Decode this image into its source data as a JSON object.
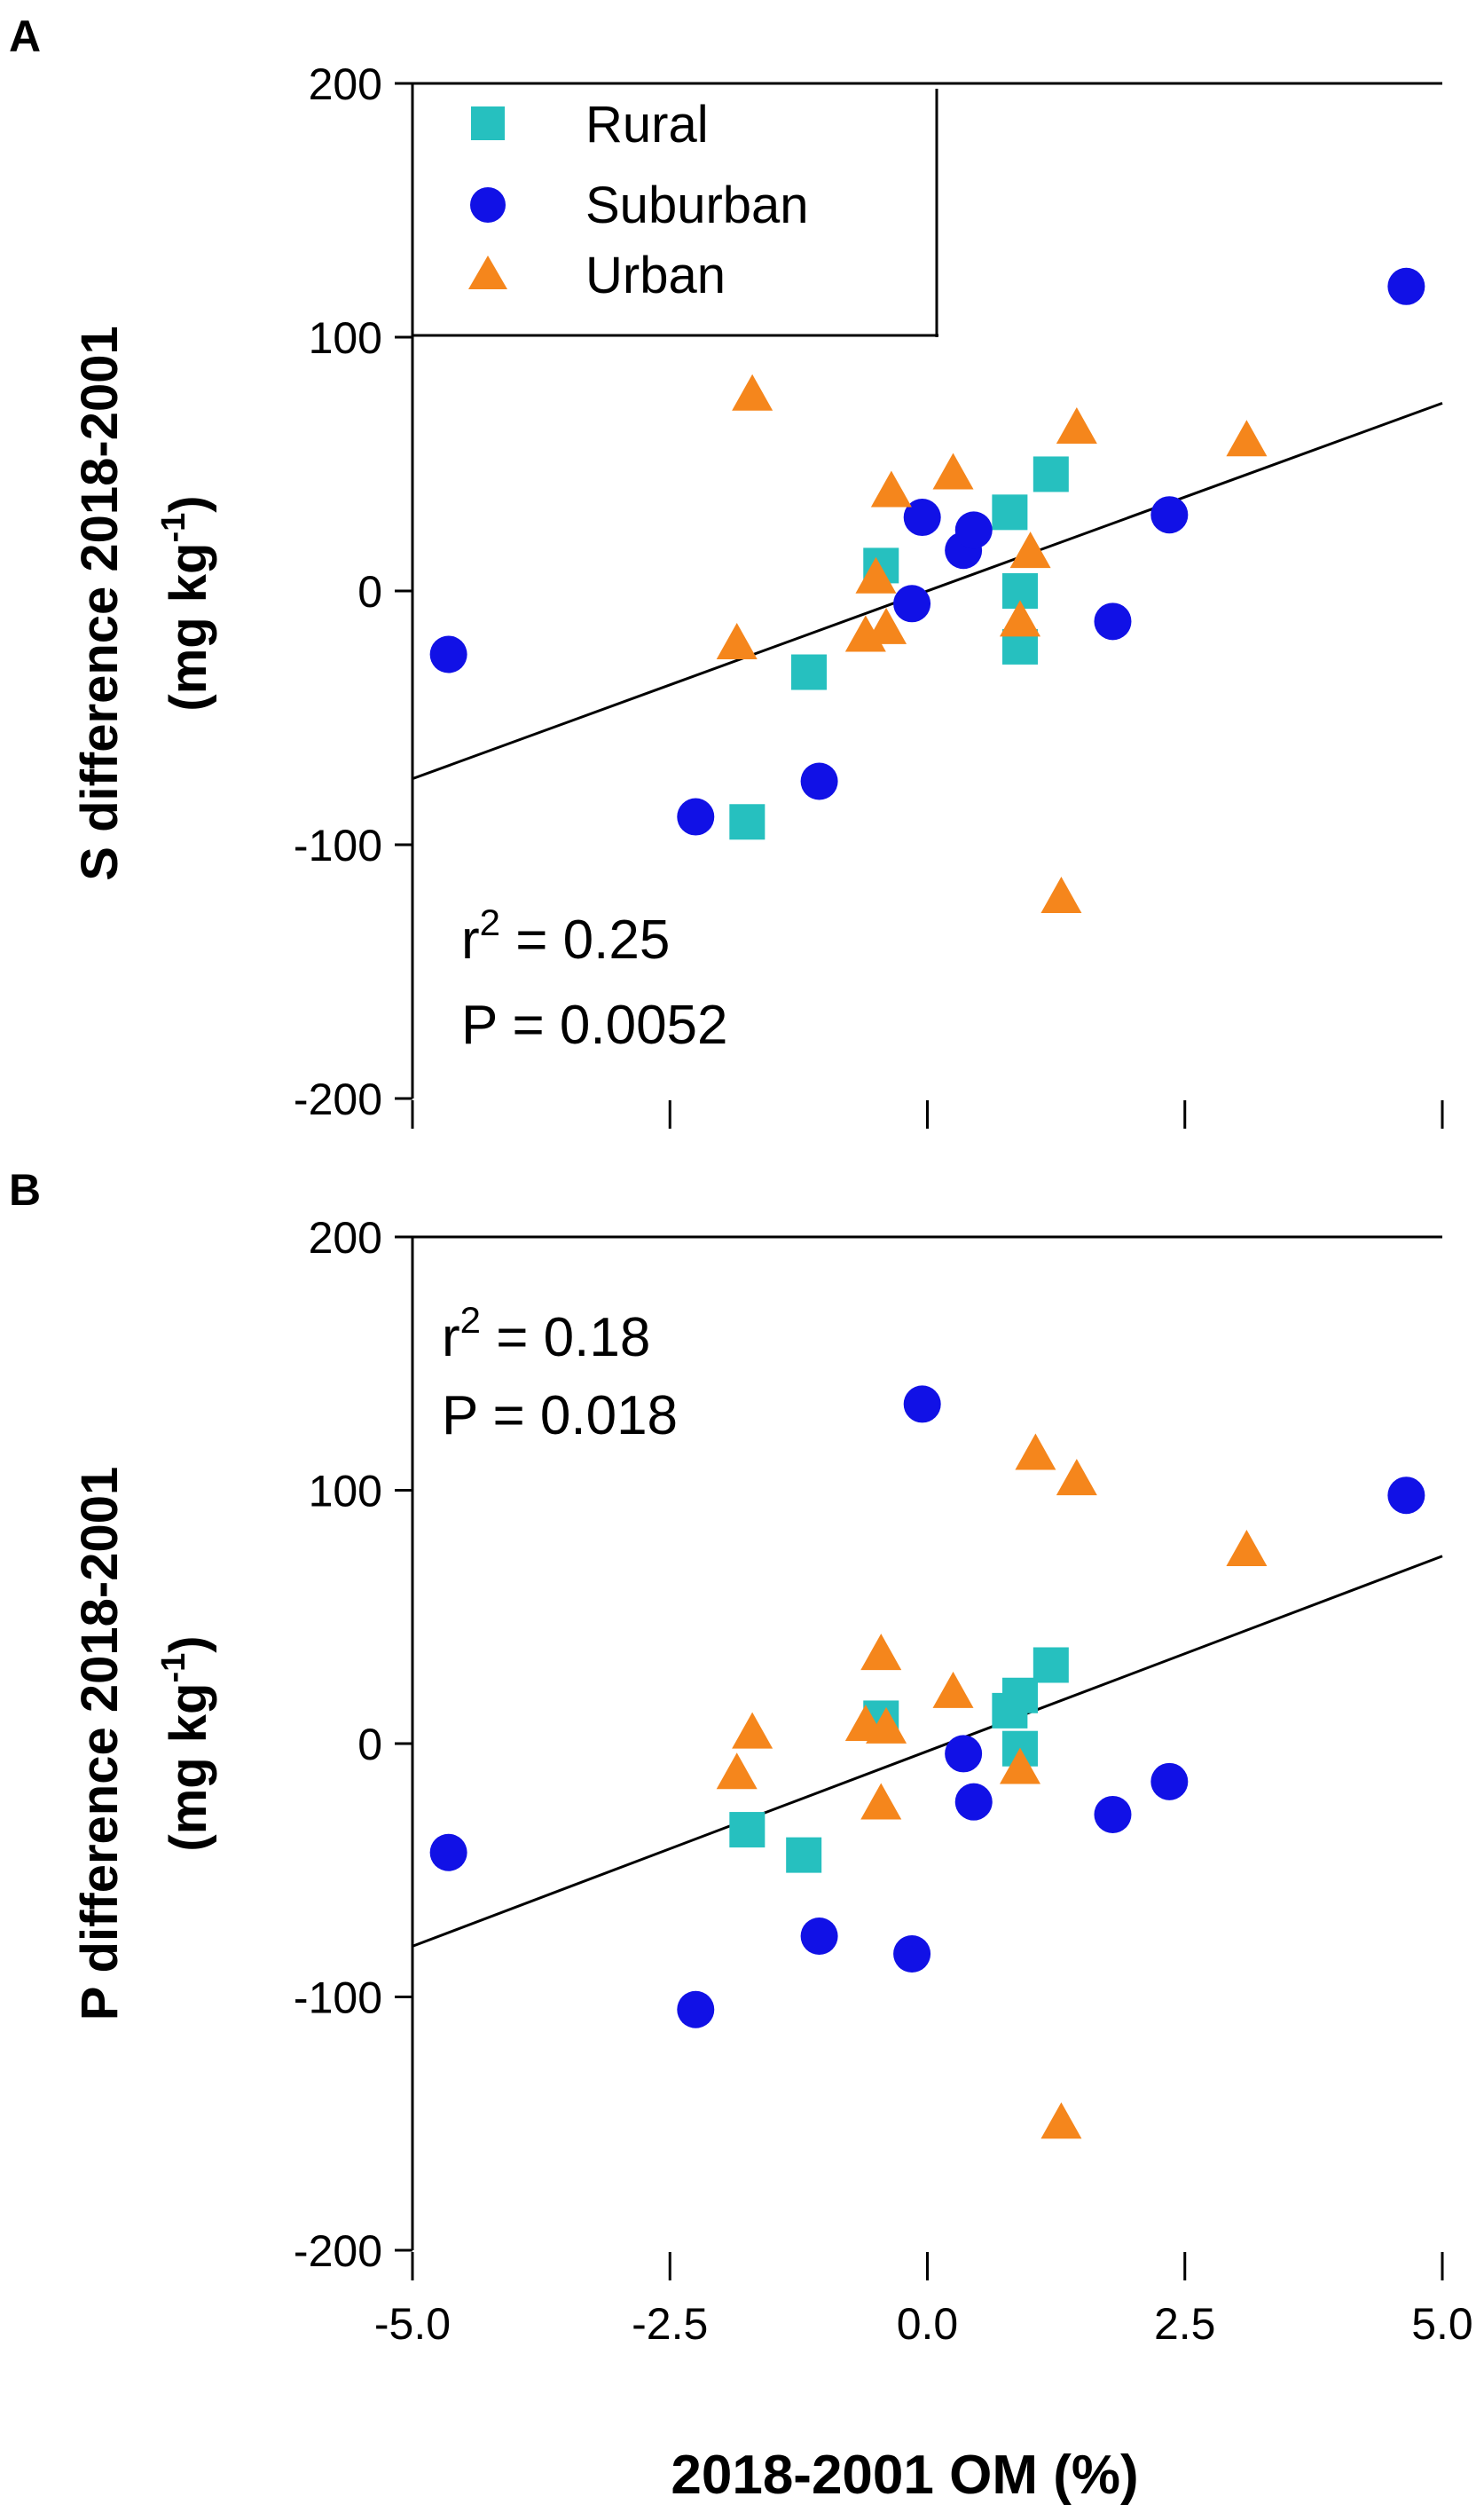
{
  "colors": {
    "rural": "#26c0bf",
    "suburban": "#1111e6",
    "urban": "#f5861c"
  },
  "legend": [
    {
      "key": "rural",
      "label": "Rural",
      "marker": "square"
    },
    {
      "key": "suburban",
      "label": "Suburban",
      "marker": "circle"
    },
    {
      "key": "urban",
      "label": "Urban",
      "marker": "triangle"
    }
  ],
  "xaxis": {
    "label": "2018-2001 OM (%)",
    "ticks": [
      "-5.0",
      "-2.5",
      "0.0",
      "2.5",
      "5.0"
    ]
  },
  "chart_data": [
    {
      "type": "scatter",
      "panel_label": "A",
      "ylabel": "S difference 2018-2001",
      "yunit": "(mg kg",
      "yunit_exp": "-1",
      "yunit_close": ")",
      "xlim": [
        -5.0,
        5.0
      ],
      "ylim": [
        -200,
        200
      ],
      "yticks": [
        "-200",
        "-100",
        "0",
        "100",
        "200"
      ],
      "r2_label": "r",
      "r2_exp": "2",
      "r2_value": " = 0.25",
      "p_text": "P = 0.0052",
      "fit": [
        [
          -5.0,
          -74
        ],
        [
          5.0,
          74
        ]
      ],
      "series": [
        {
          "name": "Rural",
          "points": [
            [
              -1.75,
              -91
            ],
            [
              -1.15,
              -32
            ],
            [
              -0.45,
              10
            ],
            [
              0.8,
              31
            ],
            [
              1.2,
              46
            ],
            [
              0.9,
              0
            ],
            [
              0.9,
              -22
            ]
          ]
        },
        {
          "name": "Suburban",
          "points": [
            [
              -4.65,
              -25
            ],
            [
              -2.25,
              -89
            ],
            [
              -1.05,
              -75
            ],
            [
              -0.05,
              29
            ],
            [
              -0.15,
              -5
            ],
            [
              0.35,
              16
            ],
            [
              0.45,
              24
            ],
            [
              1.8,
              -12
            ],
            [
              2.35,
              30
            ],
            [
              4.65,
              120
            ]
          ]
        },
        {
          "name": "Urban",
          "points": [
            [
              -1.7,
              77
            ],
            [
              -1.85,
              -21
            ],
            [
              -0.6,
              -18
            ],
            [
              -0.35,
              39
            ],
            [
              -0.4,
              -15
            ],
            [
              -0.5,
              5
            ],
            [
              0.25,
              46
            ],
            [
              0.9,
              -12
            ],
            [
              1.0,
              15
            ],
            [
              1.45,
              64
            ],
            [
              1.3,
              -121
            ],
            [
              3.1,
              59
            ]
          ]
        }
      ]
    },
    {
      "type": "scatter",
      "panel_label": "B",
      "ylabel": "P difference 2018-2001",
      "yunit": "(mg kg",
      "yunit_exp": "-1",
      "yunit_close": ")",
      "xlim": [
        -5.0,
        5.0
      ],
      "ylim": [
        -200,
        200
      ],
      "yticks": [
        "-200",
        "-100",
        "0",
        "100",
        "200"
      ],
      "r2_label": "r",
      "r2_exp": "2",
      "r2_value": " = 0.18",
      "p_text": "P = 0.018",
      "fit": [
        [
          -5.0,
          -80
        ],
        [
          5.0,
          74
        ]
      ],
      "series": [
        {
          "name": "Rural",
          "points": [
            [
              -1.75,
              -34
            ],
            [
              -1.2,
              -44
            ],
            [
              -0.45,
              10
            ],
            [
              0.8,
              13
            ],
            [
              0.9,
              19
            ],
            [
              0.9,
              -2
            ],
            [
              1.2,
              31
            ]
          ]
        },
        {
          "name": "Suburban",
          "points": [
            [
              -4.65,
              -43
            ],
            [
              -2.25,
              -105
            ],
            [
              -1.05,
              -76
            ],
            [
              -0.15,
              -83
            ],
            [
              -0.05,
              134
            ],
            [
              0.35,
              -4
            ],
            [
              0.45,
              -23
            ],
            [
              1.8,
              -28
            ],
            [
              2.35,
              -15
            ],
            [
              4.65,
              98
            ]
          ]
        },
        {
          "name": "Urban",
          "points": [
            [
              -1.7,
              4
            ],
            [
              -1.85,
              -12
            ],
            [
              -0.6,
              7
            ],
            [
              -0.45,
              35
            ],
            [
              -0.4,
              6
            ],
            [
              -0.45,
              -24
            ],
            [
              0.25,
              20
            ],
            [
              0.9,
              -10
            ],
            [
              1.05,
              114
            ],
            [
              1.45,
              104
            ],
            [
              1.3,
              -150
            ],
            [
              3.1,
              76
            ]
          ]
        }
      ]
    }
  ]
}
